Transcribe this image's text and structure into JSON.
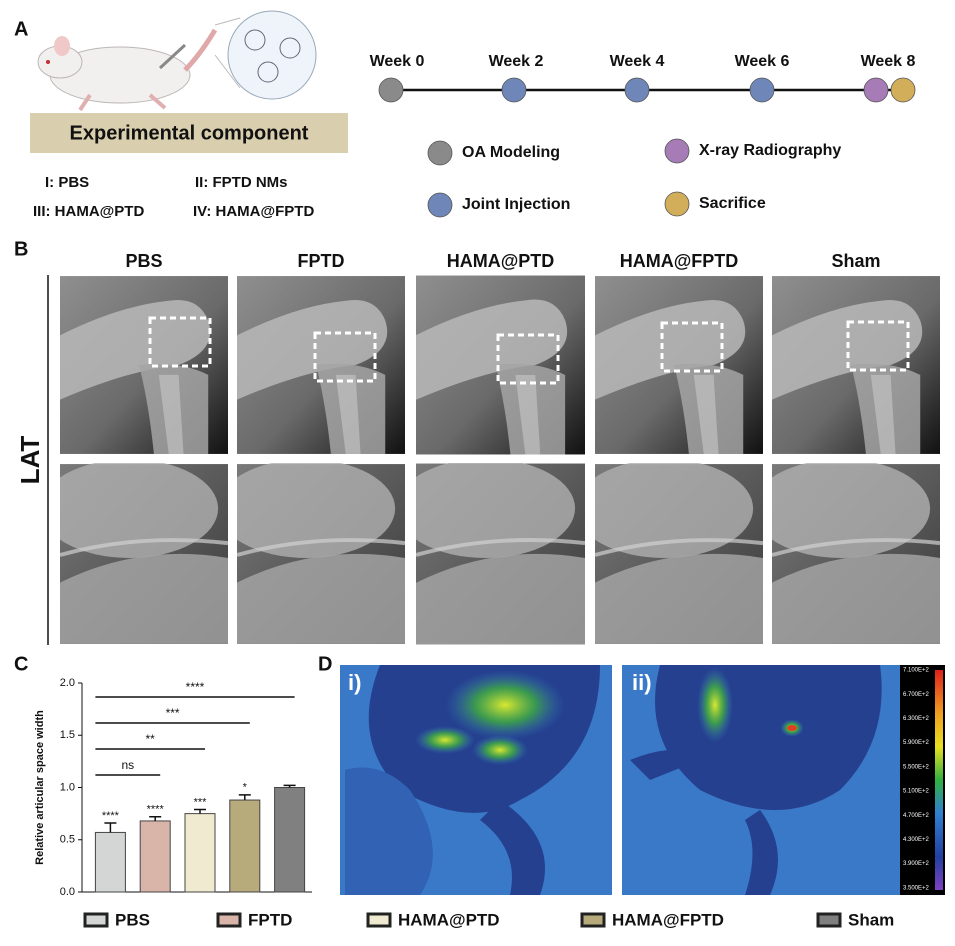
{
  "panel_labels": [
    "A",
    "B",
    "C",
    "D"
  ],
  "panel_a": {
    "box_title": "Experimental component",
    "groups": [
      "I: PBS",
      "II: FPTD NMs",
      "III: HAMA@PTD",
      "IV: HAMA@FPTD"
    ],
    "timeline": [
      "Week 0",
      "Week 2",
      "Week 4",
      "Week 6",
      "Week 8"
    ],
    "legend": [
      "OA Modeling",
      "Joint Injection",
      "X-ray Radiography",
      "Sacrifice"
    ]
  },
  "panel_b": {
    "columns": [
      "PBS",
      "FPTD",
      "HAMA@PTD",
      "HAMA@FPTD",
      "Sham"
    ],
    "row_label": "LAT"
  },
  "chart_data": {
    "type": "bar",
    "ylabel": "Relative articular space width",
    "categories": [
      "PBS",
      "FPTD",
      "HAMA@PTD",
      "HAMA@FPTD",
      "Sham"
    ],
    "values": [
      0.57,
      0.68,
      0.75,
      0.88,
      1.0
    ],
    "errors": [
      0.09,
      0.04,
      0.04,
      0.05,
      0.02
    ],
    "colors": [
      "#d4d6d6",
      "#d9b5a9",
      "#f0ead0",
      "#b7ab7c",
      "#808080"
    ],
    "significance": [
      "****",
      "****",
      "***",
      "*",
      null
    ],
    "comparisons": [
      "ns",
      "**",
      "***",
      "****"
    ],
    "ylim": [
      0,
      2.0
    ],
    "yticks": [
      {
        "value": 0,
        "label": "0.0"
      },
      0.5,
      {
        "value": 1.0,
        "label": "1.0"
      },
      1.5,
      {
        "value": 2.0,
        "label": "2.0"
      }
    ]
  },
  "panel_d": {
    "images": [
      "i)",
      "ii)"
    ],
    "colorbar": [
      "7.100E+2",
      "6.700E+2",
      "6.300E+2",
      "5.900E+2",
      "5.500E+2",
      "5.100E+2",
      "4.700E+2",
      "4.300E+2",
      "3.900E+2",
      "3.500E+2"
    ]
  }
}
